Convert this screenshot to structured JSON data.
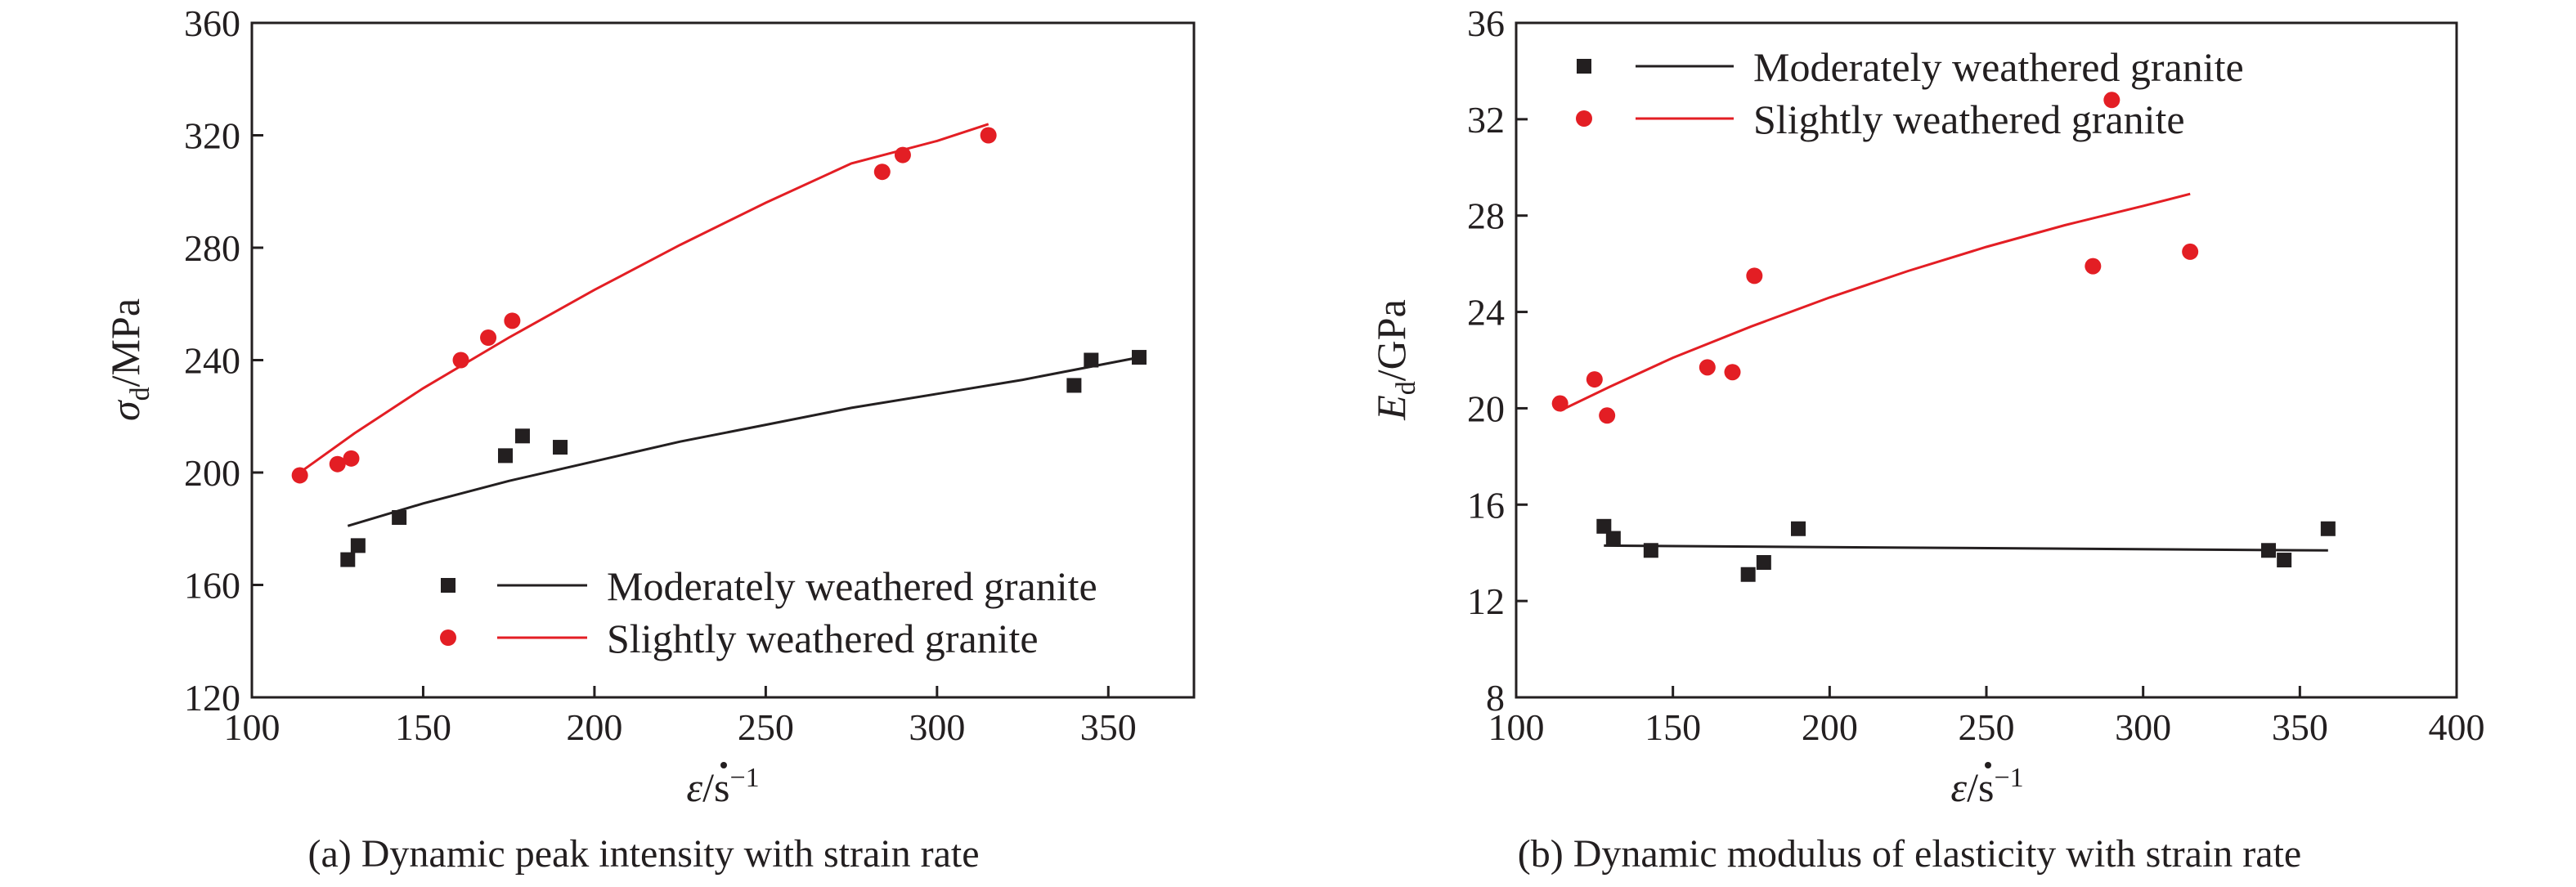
{
  "colors": {
    "moderate": "#231f20",
    "slight": "#e31e24",
    "axis": "#231f20"
  },
  "chart_data": [
    {
      "type": "scatter",
      "caption": "(a) Dynamic peak intensity with strain rate",
      "ylabel": {
        "symbol": "σ",
        "sub": "d",
        "unit": "/MPa"
      },
      "xlabel": {
        "symbol": "ε",
        "unit": "/s",
        "sup": "−1"
      },
      "xlim": [
        100,
        375
      ],
      "ylim": [
        120,
        360
      ],
      "xticks": [
        100,
        150,
        200,
        250,
        300,
        350
      ],
      "yticks": [
        120,
        160,
        200,
        240,
        280,
        320,
        360
      ],
      "legend_position": "bottom-right",
      "series": [
        {
          "name": "Moderately weathered granite",
          "color": "#231f20",
          "marker": "square",
          "x": [
            128,
            131,
            143,
            174,
            179,
            190,
            340,
            345,
            359
          ],
          "y": [
            169,
            174,
            184,
            206,
            213,
            209,
            231,
            240,
            241
          ],
          "fit": {
            "x": [
              128,
              150,
              175,
              200,
              225,
              250,
              275,
              300,
              325,
              359
            ],
            "y": [
              181,
              189,
              197,
              204,
              211,
              217,
              223,
              228,
              233,
              241
            ]
          }
        },
        {
          "name": "Slightly weathered granite",
          "color": "#e31e24",
          "marker": "circle",
          "x": [
            114,
            125,
            129,
            161,
            169,
            176,
            284,
            290,
            315
          ],
          "y": [
            199,
            203,
            205,
            240,
            248,
            254,
            307,
            313,
            320
          ],
          "fit": {
            "x": [
              114,
              130,
              150,
              175,
              200,
              225,
              250,
              275,
              300,
              315
            ],
            "y": [
              200,
              214,
              230,
              248,
              265,
              281,
              296,
              310,
              318,
              324
            ]
          }
        }
      ]
    },
    {
      "type": "scatter",
      "caption": "(b) Dynamic modulus of elasticity with strain rate",
      "ylabel": {
        "symbol": "E",
        "sub": "d",
        "unit": "/GPa"
      },
      "xlabel": {
        "symbol": "ε",
        "unit": "/s",
        "sup": "−1"
      },
      "xlim": [
        100,
        400
      ],
      "ylim": [
        8,
        36
      ],
      "xticks": [
        100,
        150,
        200,
        250,
        300,
        350,
        400
      ],
      "yticks": [
        8,
        12,
        16,
        20,
        24,
        28,
        32,
        36
      ],
      "legend_position": "top-left",
      "series": [
        {
          "name": "Moderately weathered granite",
          "color": "#231f20",
          "marker": "square",
          "x": [
            128,
            131,
            143,
            174,
            179,
            190,
            340,
            345,
            359
          ],
          "y": [
            15.1,
            14.6,
            14.1,
            13.1,
            13.6,
            15.0,
            14.1,
            13.7,
            15.0
          ],
          "fit": {
            "x": [
              128,
              359
            ],
            "y": [
              14.3,
              14.1
            ]
          }
        },
        {
          "name": "Slightly weathered granite",
          "color": "#e31e24",
          "marker": "circle",
          "x": [
            114,
            125,
            129,
            161,
            169,
            176,
            284,
            290,
            315
          ],
          "y": [
            20.2,
            21.2,
            19.7,
            21.7,
            21.5,
            25.5,
            25.9,
            32.8,
            26.5
          ],
          "fit": {
            "x": [
              114,
              130,
              150,
              175,
              200,
              225,
              250,
              275,
              300,
              315
            ],
            "y": [
              19.9,
              20.9,
              22.1,
              23.4,
              24.6,
              25.7,
              26.7,
              27.6,
              28.4,
              28.9
            ]
          }
        }
      ]
    }
  ]
}
